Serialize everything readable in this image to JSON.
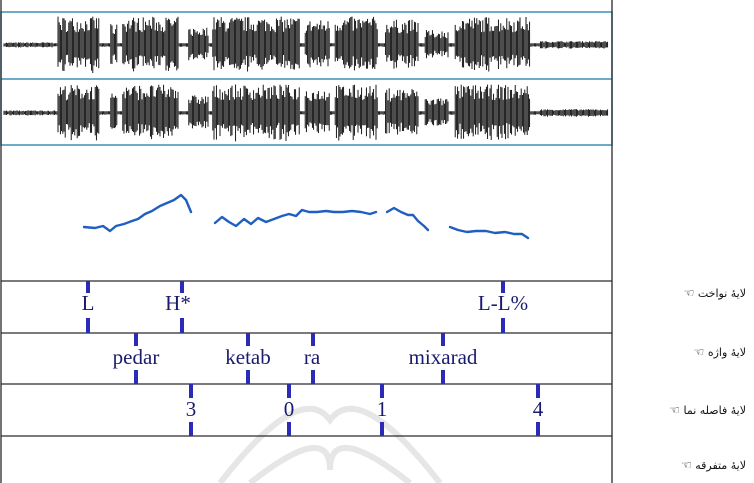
{
  "colors": {
    "frame": "#2a2a2a",
    "panel_border": "#3f8fb5",
    "waveform": "#000000",
    "pitch": "#1f5fbf",
    "marker": "#2b2bb8",
    "tier_line": "#333333",
    "label_text": "#1a1a6e",
    "watermark": "#e6e6e6"
  },
  "tiers": {
    "tones": {
      "label": "لايهٔ نواخت",
      "marks": [
        "L",
        "H*",
        "L-L%"
      ]
    },
    "words": {
      "label": "لايهٔ واژه",
      "marks": [
        "pedar",
        "ketab",
        "ra",
        "mixarad"
      ]
    },
    "breaks": {
      "label": "لايهٔ فاصله نما",
      "marks": [
        "3",
        "0",
        "1",
        "4"
      ]
    },
    "misc": {
      "label": "لايهٔ متفرقه",
      "marks": []
    }
  },
  "icons": {
    "tier_pointer": "pointing-hand-icon"
  },
  "hand_glyph": "☜"
}
